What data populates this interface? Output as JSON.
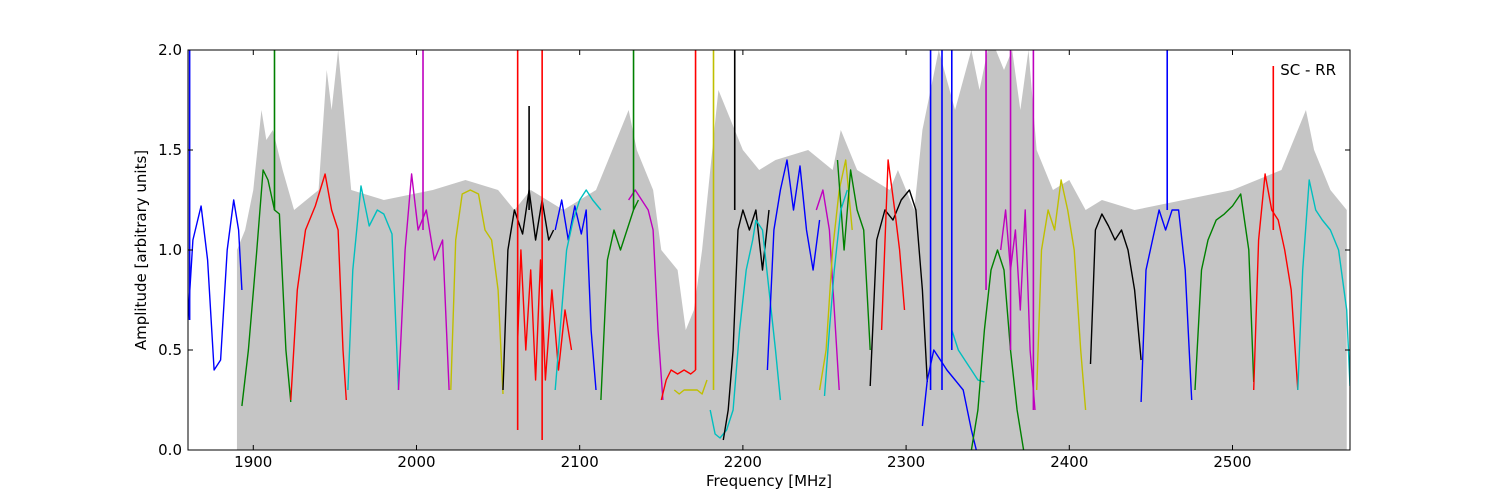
{
  "chart_data": {
    "type": "line",
    "title": "",
    "annotation": "SC - RR",
    "xlabel": "Frequency [MHz]",
    "ylabel": "Amplitude [arbitrary units]",
    "xlim": [
      1860,
      2572
    ],
    "ylim": [
      0.0,
      2.0
    ],
    "xticks": [
      1900,
      2000,
      2100,
      2200,
      2300,
      2400,
      2500
    ],
    "xtick_labels": [
      "1900",
      "2000",
      "2100",
      "2200",
      "2300",
      "2400",
      "2500"
    ],
    "yticks": [
      0.0,
      0.5,
      1.0,
      1.5,
      2.0
    ],
    "ytick_labels": [
      "0.0",
      "0.5",
      "1.0",
      "1.5",
      "2.0"
    ],
    "grid": false,
    "background_envelope_color": "#bfbfbf",
    "series": [
      {
        "color": "#0000ff",
        "x": [
          1860,
          1863,
          1868,
          1872,
          1876,
          1880,
          1884,
          1888,
          1891,
          1893
        ],
        "y": [
          0.65,
          1.05,
          1.22,
          0.95,
          0.4,
          0.45,
          1.0,
          1.25,
          1.1,
          0.8
        ]
      },
      {
        "color": "#008000",
        "x": [
          1893,
          1897,
          1902,
          1906,
          1909,
          1913,
          1916,
          1920,
          1923
        ],
        "y": [
          0.22,
          0.5,
          0.98,
          1.4,
          1.35,
          1.2,
          1.18,
          0.5,
          0.24
        ]
      },
      {
        "color": "#ff0000",
        "x": [
          1923,
          1927,
          1932,
          1938,
          1944,
          1948,
          1952,
          1955,
          1957
        ],
        "y": [
          0.25,
          0.8,
          1.1,
          1.22,
          1.38,
          1.2,
          1.1,
          0.5,
          0.25
        ]
      },
      {
        "color": "#00bfbf",
        "x": [
          1958,
          1961,
          1966,
          1971,
          1976,
          1980,
          1985,
          1989
        ],
        "y": [
          0.3,
          0.9,
          1.32,
          1.12,
          1.2,
          1.18,
          1.08,
          0.3
        ]
      },
      {
        "color": "#bf00bf",
        "x": [
          1989,
          1993,
          1997,
          2001,
          2006,
          2011,
          2016,
          2020
        ],
        "y": [
          0.3,
          1.0,
          1.38,
          1.1,
          1.2,
          0.95,
          1.05,
          0.3
        ]
      },
      {
        "color": "#bfbf00",
        "x": [
          2021,
          2024,
          2028,
          2033,
          2038,
          2042,
          2046,
          2050,
          2053
        ],
        "y": [
          0.3,
          1.05,
          1.28,
          1.3,
          1.28,
          1.1,
          1.05,
          0.8,
          0.28
        ]
      },
      {
        "color": "#000000",
        "x": [
          2053,
          2056,
          2060,
          2065,
          2069,
          2073,
          2077,
          2081,
          2084
        ],
        "y": [
          0.3,
          1.0,
          1.2,
          1.08,
          1.3,
          1.05,
          1.25,
          1.05,
          1.1
        ]
      },
      {
        "color": "#ff0000",
        "x": [
          2062,
          2064,
          2067,
          2070,
          2073,
          2076,
          2079,
          2083,
          2087,
          2091,
          2095
        ],
        "y": [
          0.55,
          1.0,
          0.5,
          0.9,
          0.35,
          0.95,
          0.35,
          0.8,
          0.4,
          0.7,
          0.5
        ]
      },
      {
        "color": "#0000ff",
        "x": [
          2085,
          2089,
          2093,
          2097,
          2101,
          2104,
          2107,
          2110
        ],
        "y": [
          1.1,
          1.25,
          1.05,
          1.22,
          1.08,
          1.2,
          0.6,
          0.3
        ]
      },
      {
        "color": "#00bfbf",
        "x": [
          2085,
          2088,
          2092,
          2096,
          2100,
          2104,
          2108,
          2113
        ],
        "y": [
          0.3,
          0.6,
          1.0,
          1.15,
          1.25,
          1.3,
          1.25,
          1.2
        ]
      },
      {
        "color": "#008000",
        "x": [
          2113,
          2117,
          2121,
          2125,
          2129,
          2133,
          2136
        ],
        "y": [
          0.25,
          0.95,
          1.1,
          1.0,
          1.1,
          1.2,
          1.25
        ]
      },
      {
        "color": "#bf00bf",
        "x": [
          2130,
          2134,
          2138,
          2142,
          2145,
          2148,
          2151
        ],
        "y": [
          1.25,
          1.3,
          1.25,
          1.2,
          1.1,
          0.6,
          0.25
        ]
      },
      {
        "color": "#ff0000",
        "x": [
          2150,
          2153,
          2156,
          2160,
          2164,
          2168,
          2171
        ],
        "y": [
          0.25,
          0.35,
          0.4,
          0.38,
          0.4,
          0.38,
          0.4
        ]
      },
      {
        "color": "#bfbf00",
        "x": [
          2158,
          2161,
          2164,
          2168,
          2172,
          2175,
          2178
        ],
        "y": [
          0.3,
          0.28,
          0.3,
          0.3,
          0.3,
          0.28,
          0.35
        ]
      },
      {
        "color": "#00bfbf",
        "x": [
          2180,
          2183,
          2186,
          2190,
          2194,
          2198,
          2202,
          2206,
          2208
        ],
        "y": [
          0.2,
          0.08,
          0.06,
          0.1,
          0.2,
          0.6,
          0.9,
          1.05,
          1.15
        ]
      },
      {
        "color": "#000000",
        "x": [
          2188,
          2191,
          2194,
          2197,
          2200,
          2204,
          2208,
          2212,
          2216
        ],
        "y": [
          0.05,
          0.2,
          0.5,
          1.1,
          1.2,
          1.1,
          1.2,
          0.9,
          1.2
        ]
      },
      {
        "color": "#00bfbf",
        "x": [
          2208,
          2212,
          2216,
          2220,
          2223
        ],
        "y": [
          1.15,
          1.1,
          0.8,
          0.5,
          0.25
        ]
      },
      {
        "color": "#0000ff",
        "x": [
          2215,
          2219,
          2223,
          2227,
          2231,
          2235,
          2239,
          2243,
          2247
        ],
        "y": [
          0.4,
          1.1,
          1.3,
          1.45,
          1.2,
          1.42,
          1.1,
          0.9,
          1.15
        ]
      },
      {
        "color": "#bf00bf",
        "x": [
          2245,
          2249,
          2253,
          2256,
          2259
        ],
        "y": [
          1.2,
          1.3,
          1.1,
          0.7,
          0.3
        ]
      },
      {
        "color": "#bfbf00",
        "x": [
          2247,
          2251,
          2255,
          2259,
          2263,
          2267
        ],
        "y": [
          0.3,
          0.5,
          1.0,
          1.3,
          1.45,
          1.1
        ]
      },
      {
        "color": "#008000",
        "x": [
          2258,
          2262,
          2266,
          2270,
          2274,
          2278
        ],
        "y": [
          1.45,
          1.0,
          1.4,
          1.2,
          1.1,
          0.5
        ]
      },
      {
        "color": "#00bfbf",
        "x": [
          2250,
          2253,
          2256,
          2260,
          2264
        ],
        "y": [
          0.27,
          0.6,
          0.9,
          1.2,
          1.3
        ]
      },
      {
        "color": "#000000",
        "x": [
          2278,
          2282,
          2287,
          2292,
          2297,
          2302,
          2306,
          2310,
          2313
        ],
        "y": [
          0.32,
          1.05,
          1.2,
          1.15,
          1.25,
          1.3,
          1.2,
          0.8,
          0.34
        ]
      },
      {
        "color": "#ff0000",
        "x": [
          2285,
          2289,
          2293,
          2296,
          2299
        ],
        "y": [
          0.6,
          1.45,
          1.2,
          1.0,
          0.7
        ]
      },
      {
        "color": "#0000ff",
        "x": [
          2310,
          2313,
          2317,
          2321,
          2325,
          2330,
          2335,
          2340,
          2343
        ],
        "y": [
          0.12,
          0.35,
          0.5,
          0.45,
          0.4,
          0.35,
          0.3,
          0.1,
          0.0
        ]
      },
      {
        "color": "#00bfbf",
        "x": [
          2328,
          2332,
          2336,
          2340,
          2344,
          2348
        ],
        "y": [
          0.6,
          0.5,
          0.45,
          0.4,
          0.35,
          0.34
        ]
      },
      {
        "color": "#008000",
        "x": [
          2340,
          2344,
          2348,
          2352,
          2356,
          2360,
          2364,
          2368,
          2372
        ],
        "y": [
          0.0,
          0.2,
          0.6,
          0.9,
          1.0,
          0.9,
          0.5,
          0.2,
          0.0
        ]
      },
      {
        "color": "#bf00bf",
        "x": [
          2358,
          2361,
          2364,
          2367,
          2370,
          2373,
          2376,
          2379
        ],
        "y": [
          1.0,
          1.2,
          0.9,
          1.1,
          0.7,
          1.2,
          0.5,
          0.2
        ]
      },
      {
        "color": "#bfbf00",
        "x": [
          2380,
          2383,
          2387,
          2391,
          2395,
          2399,
          2403,
          2407,
          2410
        ],
        "y": [
          0.3,
          1.0,
          1.2,
          1.1,
          1.35,
          1.2,
          1.0,
          0.5,
          0.2
        ]
      },
      {
        "color": "#000000",
        "x": [
          2413,
          2416,
          2420,
          2424,
          2428,
          2432,
          2436,
          2440,
          2444
        ],
        "y": [
          0.43,
          1.1,
          1.18,
          1.12,
          1.05,
          1.1,
          1.0,
          0.8,
          0.45
        ]
      },
      {
        "color": "#0000ff",
        "x": [
          2444,
          2447,
          2451,
          2455,
          2459,
          2463,
          2467,
          2471,
          2475
        ],
        "y": [
          0.24,
          0.9,
          1.05,
          1.2,
          1.1,
          1.2,
          1.2,
          0.9,
          0.25
        ]
      },
      {
        "color": "#008000",
        "x": [
          2477,
          2481,
          2485,
          2490,
          2495,
          2500,
          2505,
          2510,
          2513
        ],
        "y": [
          0.3,
          0.9,
          1.05,
          1.15,
          1.18,
          1.22,
          1.28,
          1.0,
          0.34
        ]
      },
      {
        "color": "#ff0000",
        "x": [
          2513,
          2516,
          2520,
          2524,
          2528,
          2532,
          2536,
          2540
        ],
        "y": [
          0.3,
          1.05,
          1.38,
          1.2,
          1.15,
          1.0,
          0.8,
          0.3
        ]
      },
      {
        "color": "#00bfbf",
        "x": [
          2540,
          2543,
          2547,
          2551,
          2555,
          2560,
          2565,
          2570,
          2572
        ],
        "y": [
          0.3,
          0.9,
          1.35,
          1.2,
          1.15,
          1.1,
          1.0,
          0.7,
          0.32
        ]
      }
    ],
    "spikes": [
      {
        "color": "#0000ff",
        "x": 1861,
        "y": [
          0.65,
          2.0
        ]
      },
      {
        "color": "#008000",
        "x": 1913,
        "y": [
          1.2,
          2.0
        ]
      },
      {
        "color": "#bf00bf",
        "x": 2004,
        "y": [
          1.1,
          2.0
        ]
      },
      {
        "color": "#ff0000",
        "x": 2062,
        "y": [
          0.1,
          2.0
        ]
      },
      {
        "color": "#000000",
        "x": 2069,
        "y": [
          1.2,
          1.72
        ]
      },
      {
        "color": "#ff0000",
        "x": 2077,
        "y": [
          0.05,
          2.0
        ]
      },
      {
        "color": "#008000",
        "x": 2133,
        "y": [
          1.2,
          2.0
        ]
      },
      {
        "color": "#ff0000",
        "x": 2171,
        "y": [
          0.4,
          2.0
        ]
      },
      {
        "color": "#bfbf00",
        "x": 2182,
        "y": [
          0.3,
          2.0
        ]
      },
      {
        "color": "#000000",
        "x": 2195,
        "y": [
          1.2,
          2.0
        ]
      },
      {
        "color": "#0000ff",
        "x": 2315,
        "y": [
          0.3,
          2.0
        ]
      },
      {
        "color": "#0000ff",
        "x": 2322,
        "y": [
          0.3,
          2.0
        ]
      },
      {
        "color": "#0000ff",
        "x": 2328,
        "y": [
          0.5,
          2.0
        ]
      },
      {
        "color": "#bf00bf",
        "x": 2349,
        "y": [
          0.8,
          2.0
        ]
      },
      {
        "color": "#bf00bf",
        "x": 2364,
        "y": [
          0.5,
          2.0
        ]
      },
      {
        "color": "#bf00bf",
        "x": 2378,
        "y": [
          0.2,
          2.0
        ]
      },
      {
        "color": "#0000ff",
        "x": 2460,
        "y": [
          1.2,
          2.0
        ]
      },
      {
        "color": "#ff0000",
        "x": 2525,
        "y": [
          1.1,
          1.92
        ]
      }
    ],
    "background_envelope": {
      "x": [
        1890,
        1895,
        1900,
        1905,
        1908,
        1912,
        1918,
        1925,
        1940,
        1945,
        1948,
        1952,
        1960,
        1980,
        2010,
        2030,
        2050,
        2060,
        2070,
        2080,
        2090,
        2110,
        2120,
        2125,
        2130,
        2135,
        2140,
        2145,
        2150,
        2160,
        2165,
        2170,
        2175,
        2180,
        2185,
        2190,
        2195,
        2200,
        2210,
        2220,
        2240,
        2255,
        2260,
        2270,
        2280,
        2290,
        2295,
        2300,
        2305,
        2310,
        2320,
        2330,
        2340,
        2345,
        2350,
        2355,
        2360,
        2365,
        2370,
        2375,
        2380,
        2390,
        2400,
        2410,
        2420,
        2440,
        2470,
        2500,
        2530,
        2540,
        2545,
        2550,
        2560,
        2570
      ],
      "y": [
        1.0,
        1.1,
        1.3,
        1.7,
        1.55,
        1.6,
        1.4,
        1.2,
        1.3,
        1.9,
        1.7,
        2.0,
        1.3,
        1.25,
        1.3,
        1.35,
        1.3,
        1.2,
        1.3,
        1.25,
        1.2,
        1.3,
        1.5,
        1.6,
        1.7,
        1.5,
        1.4,
        1.3,
        1.0,
        0.9,
        0.6,
        0.7,
        1.0,
        1.4,
        1.8,
        1.7,
        1.6,
        1.5,
        1.4,
        1.45,
        1.5,
        1.4,
        1.6,
        1.4,
        1.35,
        1.3,
        1.4,
        1.3,
        1.2,
        1.6,
        2.0,
        1.7,
        2.0,
        1.8,
        2.0,
        2.0,
        1.9,
        2.0,
        1.7,
        2.0,
        1.5,
        1.3,
        1.35,
        1.2,
        1.25,
        1.2,
        1.25,
        1.3,
        1.4,
        1.6,
        1.7,
        1.5,
        1.3,
        1.2
      ]
    }
  }
}
